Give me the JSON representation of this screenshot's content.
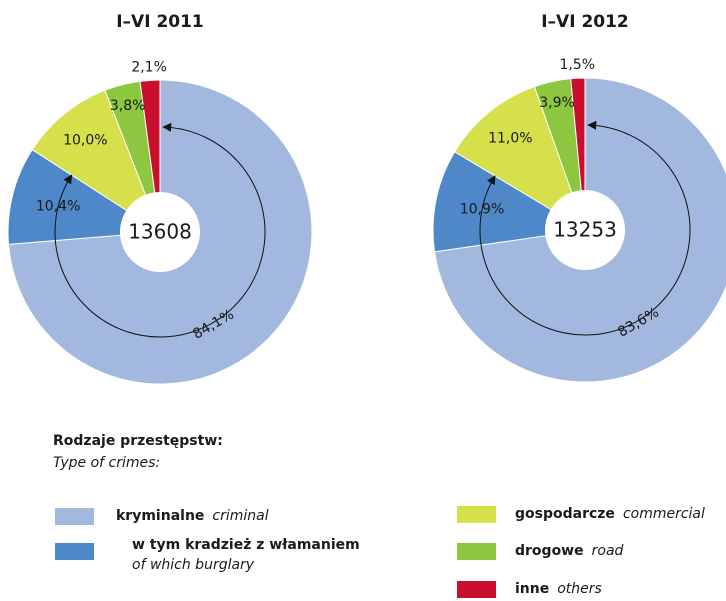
{
  "chart_data": [
    {
      "type": "pie",
      "title": "I–VI  2011",
      "total": 13608,
      "values": [
        84.1,
        10.0,
        3.8,
        2.1
      ],
      "value_labels": [
        "84,1%",
        "10,0%",
        "3,8%",
        "2,1%"
      ],
      "colors": [
        "#a3b8df",
        "#d6e04a",
        "#8dc63f",
        "#c8102e"
      ],
      "subset": {
        "value": 10.4,
        "value_label": "10,4%",
        "color": "#4f88c8"
      }
    },
    {
      "type": "pie",
      "title": "I–VI  2012",
      "total": 13253,
      "values": [
        83.6,
        11.0,
        3.9,
        1.5
      ],
      "value_labels": [
        "83,6%",
        "11,0%",
        "3,9%",
        "1,5%"
      ],
      "colors": [
        "#a3b8df",
        "#d6e04a",
        "#8dc63f",
        "#c8102e"
      ],
      "subset": {
        "value": 10.9,
        "value_label": "10,9%",
        "color": "#4f88c8"
      }
    }
  ],
  "legend": {
    "title": "Rodzaje przestępstw:",
    "subtitle": "Type of crimes:",
    "items": [
      {
        "name": "kryminalne",
        "name_en": "criminal",
        "color": "#a3b8df"
      },
      {
        "name": "w tym kradzież z włamaniem",
        "name_en": "of which burglary",
        "color": "#4f88c8"
      },
      {
        "name": "gospodarcze",
        "name_en": "commercial",
        "color": "#d6e04a"
      },
      {
        "name": "drogowe",
        "name_en": "road",
        "color": "#8dc63f"
      },
      {
        "name": "inne",
        "name_en": "others",
        "color": "#c8102e"
      }
    ]
  }
}
